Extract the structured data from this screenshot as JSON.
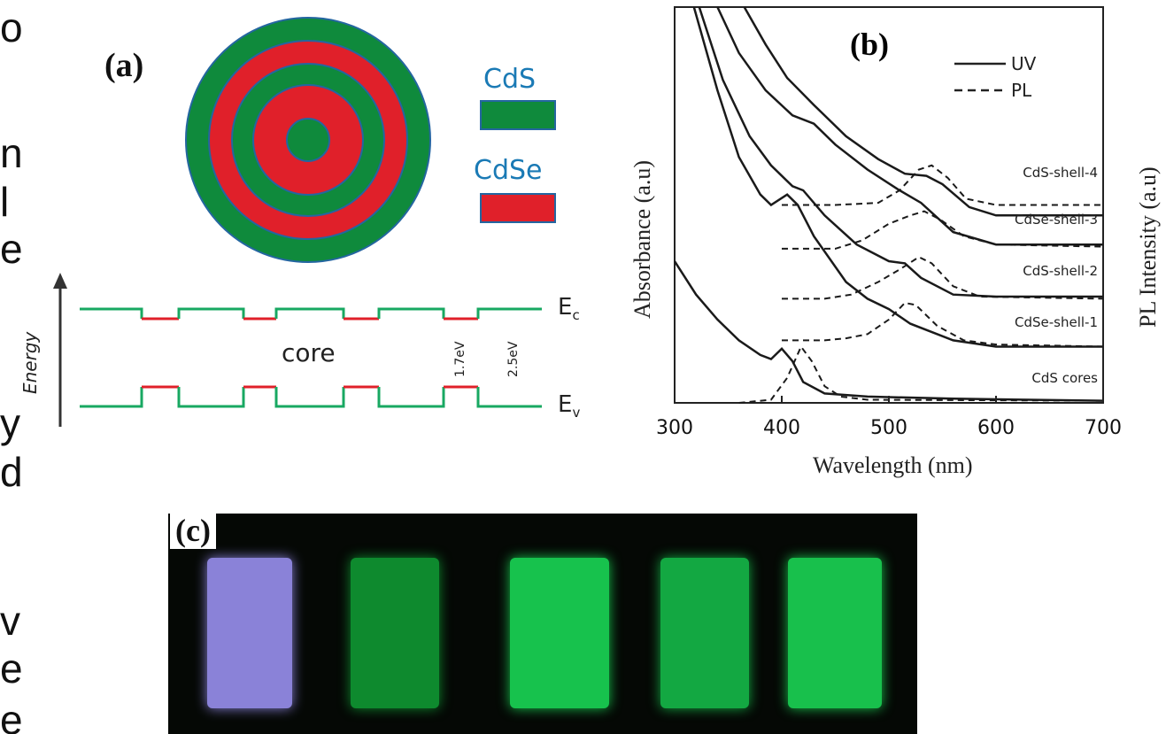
{
  "left_text_fragments": [
    "o",
    "n",
    "l",
    "e",
    "y",
    "d",
    "v",
    "e",
    "e"
  ],
  "panel_a": {
    "label": "(a)",
    "legend": [
      {
        "name": "CdS",
        "color": "#0f8a3c"
      },
      {
        "name": "CdSe",
        "color": "#e0202a"
      }
    ],
    "energy_axis_label": "Energy",
    "core_label": "core",
    "gap_labels": [
      "1.7eV",
      "2.5eV"
    ],
    "band_labels": {
      "conduction": "E",
      "conduction_sub": "c",
      "valence": "E",
      "valence_sub": "v"
    }
  },
  "panel_b": {
    "label": "(b)",
    "legend": [
      {
        "name": "UV",
        "style": "solid"
      },
      {
        "name": "PL",
        "style": "dashed"
      }
    ]
  },
  "chart_data": {
    "type": "line",
    "xlabel": "Wavelength (nm)",
    "ylabel": "Absorbance (a.u)",
    "ylabel_right": "PL Intensity (a.u)",
    "xlim": [
      300,
      700
    ],
    "xticks": [
      300,
      400,
      500,
      600,
      700
    ],
    "grid": false,
    "legend_position": "top-right",
    "series": [
      {
        "name": "CdS cores",
        "uv": [
          [
            300,
            0.68
          ],
          [
            320,
            0.52
          ],
          [
            340,
            0.4
          ],
          [
            360,
            0.3
          ],
          [
            380,
            0.23
          ],
          [
            390,
            0.21
          ],
          [
            400,
            0.26
          ],
          [
            410,
            0.2
          ],
          [
            420,
            0.1
          ],
          [
            440,
            0.045
          ],
          [
            480,
            0.03
          ],
          [
            560,
            0.02
          ],
          [
            700,
            0.01
          ]
        ],
        "pl": [
          [
            360,
            0.0
          ],
          [
            390,
            0.015
          ],
          [
            405,
            0.12
          ],
          [
            418,
            0.27
          ],
          [
            428,
            0.2
          ],
          [
            440,
            0.08
          ],
          [
            455,
            0.03
          ],
          [
            480,
            0.015
          ],
          [
            700,
            0.01
          ]
        ]
      },
      {
        "name": "CdSe-shell-1",
        "uv": [
          [
            318,
            1.9
          ],
          [
            340,
            1.5
          ],
          [
            360,
            1.18
          ],
          [
            380,
            1.0
          ],
          [
            390,
            0.95
          ],
          [
            405,
            1.0
          ],
          [
            415,
            0.95
          ],
          [
            430,
            0.8
          ],
          [
            460,
            0.58
          ],
          [
            480,
            0.5
          ],
          [
            500,
            0.45
          ],
          [
            520,
            0.38
          ],
          [
            560,
            0.3
          ],
          [
            600,
            0.27
          ],
          [
            700,
            0.27
          ]
        ],
        "pl": [
          [
            400,
            0.3
          ],
          [
            440,
            0.3
          ],
          [
            460,
            0.31
          ],
          [
            480,
            0.33
          ],
          [
            500,
            0.4
          ],
          [
            515,
            0.48
          ],
          [
            525,
            0.47
          ],
          [
            545,
            0.37
          ],
          [
            570,
            0.3
          ],
          [
            600,
            0.28
          ],
          [
            700,
            0.27
          ]
        ]
      },
      {
        "name": "CdS-shell-2",
        "uv": [
          [
            323,
            1.9
          ],
          [
            345,
            1.55
          ],
          [
            370,
            1.28
          ],
          [
            390,
            1.14
          ],
          [
            410,
            1.04
          ],
          [
            420,
            1.02
          ],
          [
            440,
            0.9
          ],
          [
            470,
            0.76
          ],
          [
            500,
            0.68
          ],
          [
            515,
            0.67
          ],
          [
            530,
            0.6
          ],
          [
            560,
            0.52
          ],
          [
            600,
            0.51
          ],
          [
            700,
            0.51
          ]
        ],
        "pl": [
          [
            400,
            0.5
          ],
          [
            440,
            0.5
          ],
          [
            465,
            0.52
          ],
          [
            490,
            0.58
          ],
          [
            510,
            0.64
          ],
          [
            528,
            0.7
          ],
          [
            540,
            0.67
          ],
          [
            560,
            0.56
          ],
          [
            585,
            0.51
          ],
          [
            700,
            0.5
          ]
        ]
      },
      {
        "name": "CdSe-shell-3",
        "uv": [
          [
            340,
            1.9
          ],
          [
            360,
            1.68
          ],
          [
            385,
            1.5
          ],
          [
            410,
            1.38
          ],
          [
            430,
            1.34
          ],
          [
            450,
            1.24
          ],
          [
            480,
            1.12
          ],
          [
            510,
            1.02
          ],
          [
            530,
            0.96
          ],
          [
            560,
            0.82
          ],
          [
            600,
            0.76
          ],
          [
            700,
            0.76
          ]
        ],
        "pl": [
          [
            400,
            0.74
          ],
          [
            450,
            0.74
          ],
          [
            475,
            0.78
          ],
          [
            500,
            0.86
          ],
          [
            520,
            0.9
          ],
          [
            533,
            0.92
          ],
          [
            548,
            0.88
          ],
          [
            570,
            0.8
          ],
          [
            600,
            0.76
          ],
          [
            700,
            0.75
          ]
        ]
      },
      {
        "name": "CdS-shell-4",
        "uv": [
          [
            365,
            1.9
          ],
          [
            385,
            1.72
          ],
          [
            405,
            1.56
          ],
          [
            430,
            1.43
          ],
          [
            460,
            1.28
          ],
          [
            490,
            1.17
          ],
          [
            515,
            1.1
          ],
          [
            535,
            1.09
          ],
          [
            550,
            1.05
          ],
          [
            575,
            0.94
          ],
          [
            600,
            0.9
          ],
          [
            650,
            0.9
          ],
          [
            700,
            0.9
          ]
        ],
        "pl": [
          [
            400,
            0.95
          ],
          [
            450,
            0.95
          ],
          [
            490,
            0.96
          ],
          [
            510,
            1.02
          ],
          [
            528,
            1.12
          ],
          [
            540,
            1.14
          ],
          [
            555,
            1.08
          ],
          [
            572,
            0.98
          ],
          [
            600,
            0.95
          ],
          [
            700,
            0.95
          ]
        ]
      }
    ]
  },
  "panel_c": {
    "label": "(c)",
    "vials": [
      {
        "color": "#8a82d8"
      },
      {
        "color": "#0e8a2e"
      },
      {
        "color": "#17c24d"
      },
      {
        "color": "#13a842"
      },
      {
        "color": "#18c04c"
      }
    ]
  }
}
